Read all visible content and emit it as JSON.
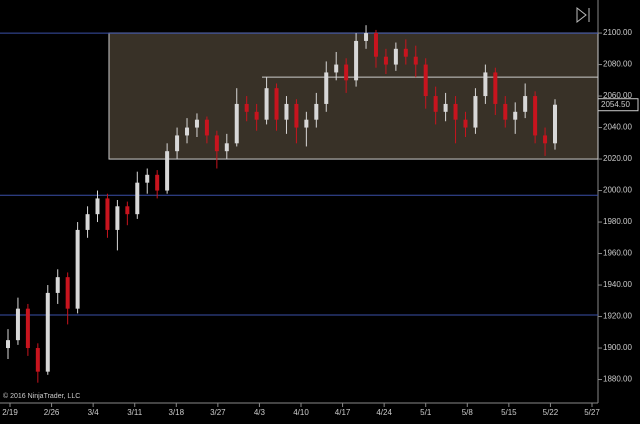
{
  "chart_data": {
    "type": "candlestick",
    "copyright": "© 2016 NinjaTrader, LLC",
    "categories": [
      "2/19",
      "2/26",
      "3/4",
      "3/11",
      "3/18",
      "3/27",
      "4/3",
      "4/10",
      "4/17",
      "4/24",
      "5/1",
      "5/8",
      "5/15",
      "5/22",
      "5/27"
    ],
    "ylim": [
      1867,
      2121
    ],
    "yticks": [
      {
        "value": 1880,
        "label": "1880.00"
      },
      {
        "value": 1900,
        "label": "1900.00"
      },
      {
        "value": 1920,
        "label": "1920.00"
      },
      {
        "value": 1940,
        "label": "1940.00"
      },
      {
        "value": 1960,
        "label": "1960.00"
      },
      {
        "value": 1980,
        "label": "1980.00"
      },
      {
        "value": 2000,
        "label": "2000.00"
      },
      {
        "value": 2020,
        "label": "2020.00"
      },
      {
        "value": 2040,
        "label": "2040.00"
      },
      {
        "value": 2060,
        "label": "2060.00"
      },
      {
        "value": 2080,
        "label": "2080.00"
      },
      {
        "value": 2100,
        "label": "2100.00"
      }
    ],
    "up_color": "#d8d8d8",
    "down_color": "#c8141e",
    "hlines": [
      2100,
      1997,
      1921
    ],
    "hline_color": "#3a4fa8",
    "zone": {
      "top": 2100,
      "bottom": 2020,
      "mid": 2072
    },
    "last_price": {
      "value": 2054.5,
      "label": "2054.50"
    },
    "ohlc": [
      [
        1900,
        1912,
        1893,
        1905
      ],
      [
        1905,
        1932,
        1902,
        1925
      ],
      [
        1925,
        1928,
        1895,
        1900
      ],
      [
        1900,
        1903,
        1878,
        1885
      ],
      [
        1885,
        1940,
        1883,
        1935
      ],
      [
        1935,
        1950,
        1928,
        1945
      ],
      [
        1945,
        1948,
        1915,
        1925
      ],
      [
        1925,
        1980,
        1922,
        1975
      ],
      [
        1975,
        1990,
        1970,
        1985
      ],
      [
        1985,
        2000,
        1980,
        1995
      ],
      [
        1995,
        1998,
        1970,
        1975
      ],
      [
        1975,
        1994,
        1962,
        1990
      ],
      [
        1990,
        1993,
        1978,
        1985
      ],
      [
        1985,
        2012,
        1982,
        2005
      ],
      [
        2005,
        2014,
        1998,
        2010
      ],
      [
        2010,
        2013,
        1995,
        2000
      ],
      [
        2000,
        2030,
        1998,
        2025
      ],
      [
        2025,
        2040,
        2020,
        2035
      ],
      [
        2035,
        2046,
        2030,
        2040
      ],
      [
        2040,
        2049,
        2034,
        2045
      ],
      [
        2045,
        2047,
        2030,
        2035
      ],
      [
        2035,
        2038,
        2014,
        2025
      ],
      [
        2025,
        2036,
        2020,
        2030
      ],
      [
        2030,
        2065,
        2028,
        2055
      ],
      [
        2055,
        2060,
        2044,
        2050
      ],
      [
        2050,
        2055,
        2038,
        2045
      ],
      [
        2045,
        2072,
        2042,
        2065
      ],
      [
        2065,
        2068,
        2038,
        2045
      ],
      [
        2045,
        2060,
        2036,
        2055
      ],
      [
        2055,
        2058,
        2030,
        2040
      ],
      [
        2040,
        2050,
        2028,
        2045
      ],
      [
        2045,
        2062,
        2040,
        2055
      ],
      [
        2055,
        2082,
        2050,
        2075
      ],
      [
        2075,
        2088,
        2070,
        2080
      ],
      [
        2080,
        2084,
        2062,
        2070
      ],
      [
        2070,
        2100,
        2066,
        2095
      ],
      [
        2095,
        2105,
        2090,
        2100
      ],
      [
        2100,
        2102,
        2078,
        2085
      ],
      [
        2085,
        2090,
        2074,
        2080
      ],
      [
        2080,
        2094,
        2076,
        2090
      ],
      [
        2090,
        2096,
        2080,
        2085
      ],
      [
        2085,
        2092,
        2072,
        2080
      ],
      [
        2080,
        2084,
        2052,
        2060
      ],
      [
        2060,
        2066,
        2042,
        2050
      ],
      [
        2050,
        2062,
        2044,
        2055
      ],
      [
        2055,
        2060,
        2030,
        2045
      ],
      [
        2045,
        2050,
        2034,
        2040
      ],
      [
        2040,
        2065,
        2036,
        2060
      ],
      [
        2060,
        2080,
        2055,
        2075
      ],
      [
        2075,
        2078,
        2048,
        2055
      ],
      [
        2055,
        2060,
        2040,
        2045
      ],
      [
        2045,
        2056,
        2036,
        2050
      ],
      [
        2050,
        2068,
        2046,
        2060
      ],
      [
        2060,
        2063,
        2030,
        2035
      ],
      [
        2035,
        2040,
        2022,
        2030
      ],
      [
        2030,
        2058,
        2026,
        2054.5
      ]
    ]
  }
}
